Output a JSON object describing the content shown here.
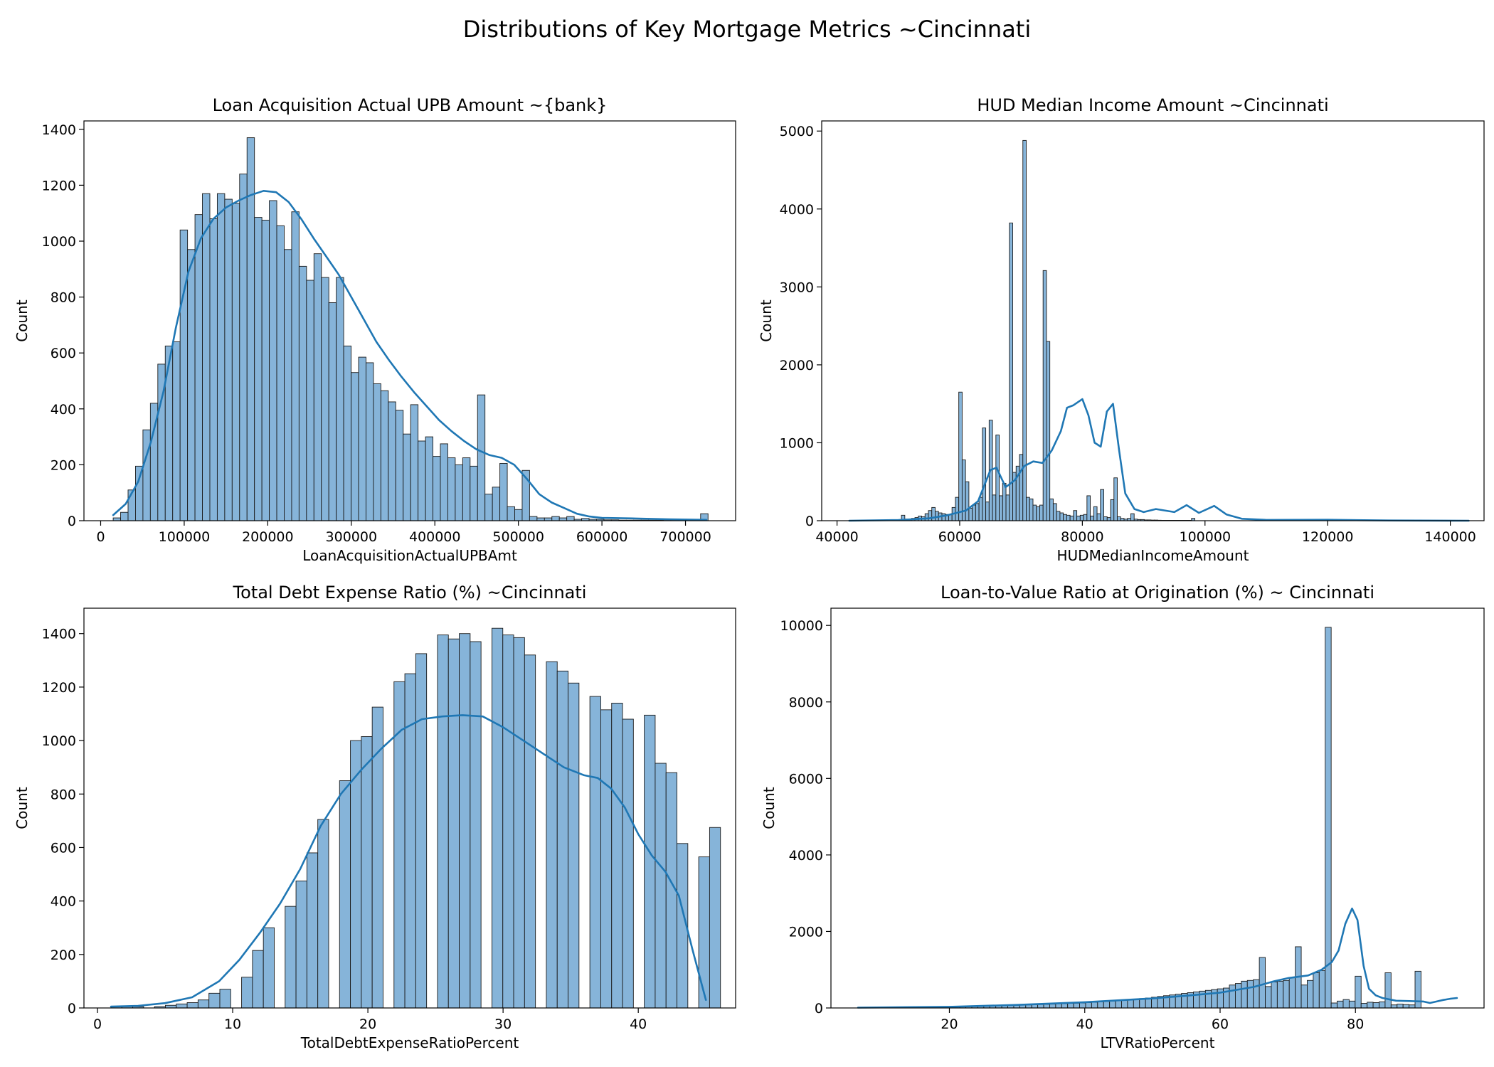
{
  "figure_title": "Distributions of Key Mortgage Metrics ~Cincinnati",
  "colors": {
    "bar_fill": "#86b4d9",
    "bar_edge": "#1a1a1a",
    "kde_line": "#1f77b4"
  },
  "chart_data": [
    {
      "type": "histogram",
      "title": "Loan Acquisition Actual UPB Amount ~{bank}",
      "xlabel": "LoanAcquisitionActualUPBAmt",
      "ylabel": "Count",
      "xlim": [
        -20000,
        760000
      ],
      "ylim": [
        0,
        1430
      ],
      "xticks": [
        0,
        100000,
        200000,
        300000,
        400000,
        500000,
        600000,
        700000
      ],
      "xtick_labels": [
        "0",
        "100000",
        "200000",
        "300000",
        "400000",
        "500000",
        "600000",
        "700000"
      ],
      "yticks": [
        0,
        200,
        400,
        600,
        800,
        1000,
        1200,
        1400
      ],
      "ytick_labels": [
        "0",
        "200",
        "400",
        "600",
        "800",
        "1000",
        "1200",
        "1400"
      ],
      "bin_start": 15000,
      "bin_width": 8900,
      "counts": [
        10,
        30,
        110,
        195,
        325,
        420,
        560,
        625,
        640,
        1040,
        970,
        1095,
        1170,
        1080,
        1170,
        1150,
        1135,
        1240,
        1370,
        1085,
        1075,
        1145,
        1055,
        970,
        1105,
        910,
        860,
        955,
        870,
        780,
        870,
        625,
        530,
        585,
        565,
        490,
        465,
        425,
        395,
        310,
        415,
        285,
        300,
        230,
        275,
        225,
        200,
        225,
        195,
        450,
        95,
        120,
        205,
        50,
        40,
        180,
        15,
        10,
        10,
        15,
        10,
        15,
        5,
        8,
        5,
        5,
        3,
        3,
        2,
        2,
        2,
        2,
        2,
        2,
        3,
        1,
        1,
        1,
        1,
        25
      ],
      "kde": [
        [
          15000,
          20
        ],
        [
          30000,
          60
        ],
        [
          45000,
          140
        ],
        [
          60000,
          280
        ],
        [
          75000,
          460
        ],
        [
          90000,
          690
        ],
        [
          105000,
          890
        ],
        [
          120000,
          1010
        ],
        [
          135000,
          1080
        ],
        [
          150000,
          1120
        ],
        [
          165000,
          1145
        ],
        [
          180000,
          1165
        ],
        [
          195000,
          1180
        ],
        [
          210000,
          1175
        ],
        [
          225000,
          1140
        ],
        [
          240000,
          1080
        ],
        [
          255000,
          1010
        ],
        [
          270000,
          945
        ],
        [
          285000,
          880
        ],
        [
          300000,
          800
        ],
        [
          315000,
          720
        ],
        [
          330000,
          640
        ],
        [
          345000,
          575
        ],
        [
          360000,
          515
        ],
        [
          375000,
          460
        ],
        [
          390000,
          410
        ],
        [
          405000,
          360
        ],
        [
          420000,
          320
        ],
        [
          435000,
          285
        ],
        [
          450000,
          255
        ],
        [
          465000,
          235
        ],
        [
          480000,
          225
        ],
        [
          495000,
          200
        ],
        [
          510000,
          150
        ],
        [
          525000,
          95
        ],
        [
          540000,
          65
        ],
        [
          555000,
          45
        ],
        [
          570000,
          25
        ],
        [
          585000,
          15
        ],
        [
          600000,
          10
        ],
        [
          640000,
          8
        ],
        [
          680000,
          5
        ],
        [
          725000,
          3
        ]
      ]
    },
    {
      "type": "histogram",
      "title": "HUD Median Income Amount ~Cincinnati",
      "xlabel": "HUDMedianIncomeAmount",
      "ylabel": "Count",
      "xlim": [
        37500,
        145500
      ],
      "ylim": [
        0,
        5130
      ],
      "xticks": [
        40000,
        60000,
        80000,
        100000,
        120000,
        140000
      ],
      "xtick_labels": [
        "40000",
        "60000",
        "80000",
        "100000",
        "120000",
        "140000"
      ],
      "yticks": [
        0,
        1000,
        2000,
        3000,
        4000,
        5000
      ],
      "ytick_labels": [
        "0",
        "1000",
        "2000",
        "3000",
        "4000",
        "5000"
      ],
      "bin_start": 50500,
      "bin_width": 550,
      "counts": [
        70,
        20,
        15,
        30,
        40,
        60,
        50,
        90,
        130,
        170,
        120,
        100,
        90,
        80,
        80,
        170,
        300,
        1650,
        780,
        500,
        160,
        200,
        220,
        300,
        1190,
        240,
        1290,
        330,
        1100,
        320,
        480,
        330,
        3820,
        620,
        700,
        850,
        4880,
        300,
        280,
        200,
        180,
        200,
        3210,
        2300,
        280,
        220,
        120,
        100,
        80,
        70,
        60,
        130,
        60,
        70,
        80,
        320,
        60,
        180,
        90,
        400,
        50,
        40,
        270,
        550,
        50,
        30,
        20,
        30,
        90,
        20,
        15,
        15,
        10,
        10,
        8,
        8,
        6,
        5,
        5,
        5,
        5,
        5,
        5,
        5,
        5,
        5,
        30
      ],
      "kde": [
        [
          42000,
          0
        ],
        [
          50000,
          8
        ],
        [
          55000,
          30
        ],
        [
          58000,
          70
        ],
        [
          61000,
          130
        ],
        [
          63000,
          250
        ],
        [
          65000,
          650
        ],
        [
          66000,
          680
        ],
        [
          67500,
          430
        ],
        [
          69000,
          520
        ],
        [
          70500,
          700
        ],
        [
          72000,
          760
        ],
        [
          73500,
          740
        ],
        [
          75000,
          900
        ],
        [
          76500,
          1150
        ],
        [
          77500,
          1450
        ],
        [
          78500,
          1480
        ],
        [
          80000,
          1560
        ],
        [
          81000,
          1350
        ],
        [
          82000,
          1000
        ],
        [
          83000,
          950
        ],
        [
          84000,
          1400
        ],
        [
          85000,
          1500
        ],
        [
          86000,
          900
        ],
        [
          87000,
          350
        ],
        [
          88500,
          150
        ],
        [
          90000,
          110
        ],
        [
          92000,
          150
        ],
        [
          95000,
          110
        ],
        [
          97000,
          200
        ],
        [
          99000,
          100
        ],
        [
          101500,
          190
        ],
        [
          103500,
          80
        ],
        [
          106000,
          25
        ],
        [
          110000,
          10
        ],
        [
          120000,
          12
        ],
        [
          130000,
          3
        ],
        [
          143000,
          0
        ]
      ]
    },
    {
      "type": "histogram",
      "title": "Total Debt Expense Ratio (%) ~Cincinnati",
      "xlabel": "TotalDebtExpenseRatioPercent",
      "ylabel": "Count",
      "xlim": [
        -1,
        47.2
      ],
      "ylim": [
        0,
        1495
      ],
      "xticks": [
        0,
        10,
        20,
        30,
        40
      ],
      "xtick_labels": [
        "0",
        "10",
        "20",
        "30",
        "40"
      ],
      "yticks": [
        0,
        200,
        400,
        600,
        800,
        1000,
        1200,
        1400
      ],
      "ytick_labels": [
        "0",
        "200",
        "400",
        "600",
        "800",
        "1000",
        "1200",
        "1400"
      ],
      "bin_start": 1,
      "bin_width": 0.805,
      "counts": [
        5,
        5,
        5,
        0,
        5,
        10,
        15,
        20,
        30,
        55,
        70,
        0,
        115,
        215,
        300,
        0,
        380,
        475,
        580,
        705,
        0,
        850,
        1000,
        1015,
        1125,
        0,
        1220,
        1250,
        1325,
        0,
        1395,
        1380,
        1400,
        1370,
        0,
        1420,
        1395,
        1385,
        1320,
        0,
        1295,
        1260,
        1215,
        0,
        1165,
        1115,
        1140,
        1080,
        0,
        1095,
        915,
        880,
        615,
        0,
        565,
        675
      ],
      "kde": [
        [
          1,
          5
        ],
        [
          3,
          8
        ],
        [
          5,
          18
        ],
        [
          7,
          40
        ],
        [
          9,
          100
        ],
        [
          10.5,
          180
        ],
        [
          12,
          280
        ],
        [
          13.5,
          390
        ],
        [
          15,
          520
        ],
        [
          16.5,
          680
        ],
        [
          18,
          800
        ],
        [
          19.5,
          890
        ],
        [
          21,
          970
        ],
        [
          22.5,
          1040
        ],
        [
          24,
          1080
        ],
        [
          25.5,
          1090
        ],
        [
          27,
          1095
        ],
        [
          28.5,
          1090
        ],
        [
          30,
          1050
        ],
        [
          31.5,
          1000
        ],
        [
          33,
          950
        ],
        [
          34.5,
          900
        ],
        [
          36,
          870
        ],
        [
          37,
          860
        ],
        [
          38,
          820
        ],
        [
          39,
          750
        ],
        [
          40,
          650
        ],
        [
          41,
          570
        ],
        [
          42,
          510
        ],
        [
          43,
          420
        ],
        [
          44,
          220
        ],
        [
          45,
          30
        ]
      ]
    },
    {
      "type": "histogram",
      "title": "Loan-to-Value Ratio at Origination (%) ~ Cincinnati",
      "xlabel": "LTVRatioPercent",
      "ylabel": "Count",
      "xlim": [
        2.5,
        99
      ],
      "ylim": [
        0,
        10450
      ],
      "xticks": [
        20,
        40,
        60,
        80
      ],
      "xtick_labels": [
        "20",
        "40",
        "60",
        "80"
      ],
      "yticks": [
        0,
        2000,
        4000,
        6000,
        8000,
        10000
      ],
      "ytick_labels": [
        "0",
        "2000",
        "4000",
        "6000",
        "8000",
        "10000"
      ],
      "bin_start": 6.5,
      "bin_width": 0.885,
      "counts": [
        15,
        15,
        15,
        15,
        18,
        18,
        20,
        20,
        22,
        25,
        25,
        28,
        30,
        30,
        32,
        35,
        38,
        40,
        42,
        45,
        48,
        50,
        55,
        60,
        62,
        65,
        70,
        75,
        80,
        85,
        90,
        95,
        100,
        110,
        115,
        120,
        125,
        130,
        140,
        150,
        160,
        170,
        180,
        190,
        200,
        215,
        230,
        245,
        260,
        280,
        300,
        320,
        340,
        360,
        380,
        400,
        420,
        440,
        460,
        480,
        500,
        520,
        600,
        640,
        700,
        720,
        740,
        1320,
        560,
        680,
        700,
        720,
        800,
        1600,
        600,
        720,
        920,
        980,
        9950,
        130,
        180,
        220,
        180,
        830,
        120,
        150,
        140,
        160,
        920,
        80,
        100,
        90,
        80,
        960
      ],
      "kde": [
        [
          6.5,
          10
        ],
        [
          20,
          30
        ],
        [
          30,
          80
        ],
        [
          40,
          150
        ],
        [
          50,
          250
        ],
        [
          55,
          320
        ],
        [
          60,
          400
        ],
        [
          65,
          550
        ],
        [
          68,
          700
        ],
        [
          70,
          780
        ],
        [
          73,
          850
        ],
        [
          75,
          1000
        ],
        [
          76.5,
          1200
        ],
        [
          77.5,
          1500
        ],
        [
          78.5,
          2200
        ],
        [
          79.5,
          2600
        ],
        [
          80.3,
          2300
        ],
        [
          81.2,
          1100
        ],
        [
          82,
          500
        ],
        [
          83,
          330
        ],
        [
          84,
          260
        ],
        [
          86,
          190
        ],
        [
          88,
          180
        ],
        [
          90,
          170
        ],
        [
          91,
          130
        ],
        [
          92,
          170
        ],
        [
          93,
          210
        ],
        [
          94,
          240
        ],
        [
          95,
          260
        ]
      ]
    }
  ]
}
